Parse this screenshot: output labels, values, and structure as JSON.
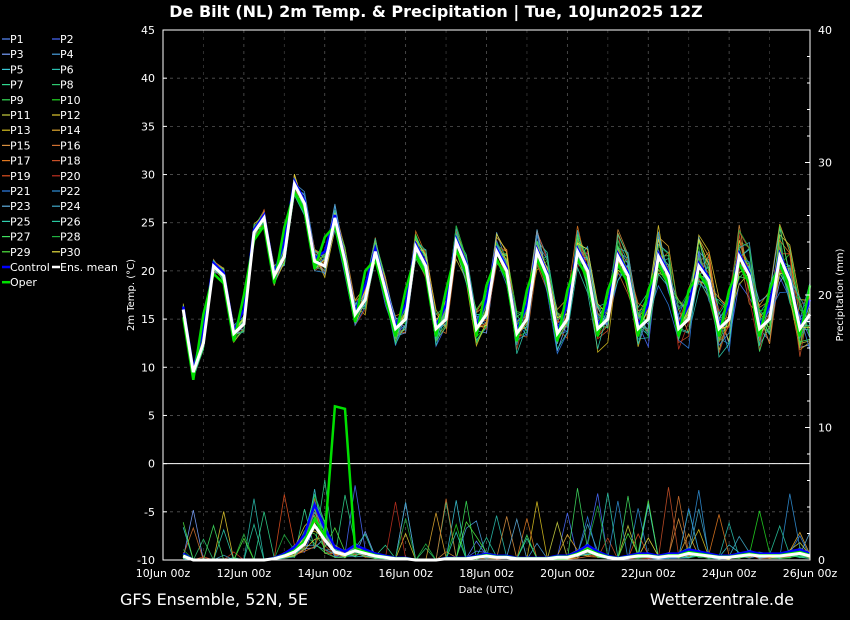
{
  "chart_data": {
    "type": "line",
    "title": "De Bilt  (NL)  2m Temp. & Precipitation | Tue, 10Jun2025 12Z",
    "xlabel": "Date (UTC)",
    "ylabel_left": "2m Temp. (°C)",
    "ylabel_right": "Precipitation (mm)",
    "x_ticks": [
      "10Jun 00z",
      "12Jun 00z",
      "14Jun 00z",
      "16Jun 00z",
      "18Jun 00z",
      "20Jun 00z",
      "22Jun 00z",
      "24Jun 00z",
      "26Jun 00z"
    ],
    "x_range_hours": [
      0,
      384
    ],
    "y_left_ticks": [
      "45",
      "40",
      "35",
      "30",
      "25",
      "20",
      "15",
      "10",
      "5",
      "0",
      "-5",
      "-10"
    ],
    "y_left_range": [
      -10,
      45
    ],
    "y_right_ticks": [
      "40",
      "30",
      "20",
      "10",
      "0"
    ],
    "y_right_range": [
      0,
      40
    ],
    "grid": true,
    "legend_position": "left",
    "x_hours": [
      12,
      18,
      24,
      30,
      36,
      42,
      48,
      54,
      60,
      66,
      72,
      78,
      84,
      90,
      96,
      102,
      108,
      114,
      120,
      126,
      132,
      138,
      144,
      150,
      156,
      162,
      168,
      174,
      180,
      186,
      192,
      198,
      204,
      210,
      216,
      222,
      228,
      234,
      240,
      246,
      252,
      258,
      264,
      270,
      276,
      282,
      288,
      294,
      300,
      306,
      312,
      318,
      324,
      330,
      336,
      342,
      348,
      354,
      360,
      366,
      372,
      378,
      384
    ],
    "ens_mean_temp": [
      16,
      9.5,
      12.5,
      20.5,
      19.5,
      13.5,
      14.5,
      24,
      25.5,
      19.5,
      21.5,
      29,
      27,
      21,
      20.5,
      25.5,
      21,
      15.5,
      17,
      22,
      18,
      14,
      15,
      22.5,
      20.5,
      14,
      15,
      23,
      20.5,
      14,
      15.5,
      22,
      20,
      13.5,
      15,
      22,
      19.5,
      13.5,
      15,
      22,
      20,
      14,
      15,
      21.5,
      19.5,
      14,
      15,
      21.5,
      19.5,
      14,
      15,
      20.5,
      19,
      14,
      15,
      21.5,
      19.5,
      14,
      15,
      21.5,
      19,
      14,
      15.5
    ],
    "ens_mean_precip": [
      0.3,
      0,
      0,
      0,
      0,
      0,
      0,
      0,
      0,
      0.1,
      0.3,
      0.6,
      1.2,
      2.6,
      1.5,
      0.6,
      0.4,
      0.7,
      0.5,
      0.3,
      0.2,
      0.1,
      0.1,
      0,
      0,
      0,
      0.1,
      0.1,
      0.1,
      0.2,
      0.3,
      0.2,
      0.2,
      0.1,
      0.1,
      0.1,
      0.1,
      0.2,
      0.2,
      0.4,
      0.7,
      0.4,
      0.2,
      0.1,
      0.2,
      0.3,
      0.3,
      0.2,
      0.3,
      0.3,
      0.5,
      0.4,
      0.3,
      0.2,
      0.2,
      0.3,
      0.4,
      0.3,
      0.3,
      0.3,
      0.4,
      0.5,
      0.3
    ],
    "series": [
      {
        "name": "P1",
        "color": "#5b8cff"
      },
      {
        "name": "P2",
        "color": "#4a6cff"
      },
      {
        "name": "P3",
        "color": "#7aa2ff"
      },
      {
        "name": "P4",
        "color": "#4aa0e0"
      },
      {
        "name": "P5",
        "color": "#3ac8d8"
      },
      {
        "name": "P6",
        "color": "#2ac0b0"
      },
      {
        "name": "P7",
        "color": "#30d890"
      },
      {
        "name": "P8",
        "color": "#2ec870"
      },
      {
        "name": "P9",
        "color": "#38e058"
      },
      {
        "name": "P10",
        "color": "#22d822"
      },
      {
        "name": "P11",
        "color": "#c8d040"
      },
      {
        "name": "P12",
        "color": "#e0c830"
      },
      {
        "name": "P13",
        "color": "#d8c020"
      },
      {
        "name": "P14",
        "color": "#e0a830"
      },
      {
        "name": "P15",
        "color": "#d89040"
      },
      {
        "name": "P16",
        "color": "#d07030"
      },
      {
        "name": "P17",
        "color": "#e07820"
      },
      {
        "name": "P18",
        "color": "#c85028"
      },
      {
        "name": "P19",
        "color": "#e05020"
      },
      {
        "name": "P20",
        "color": "#c03020"
      },
      {
        "name": "P21",
        "color": "#3080e8"
      },
      {
        "name": "P22",
        "color": "#3090d8"
      },
      {
        "name": "P23",
        "color": "#60b0e0"
      },
      {
        "name": "P24",
        "color": "#40a8c8"
      },
      {
        "name": "P25",
        "color": "#30d0b0"
      },
      {
        "name": "P26",
        "color": "#28c8a0"
      },
      {
        "name": "P27",
        "color": "#40e060"
      },
      {
        "name": "P28",
        "color": "#20b040"
      },
      {
        "name": "P29",
        "color": "#50e840"
      },
      {
        "name": "P30",
        "color": "#e8e040"
      },
      {
        "name": "Control",
        "color": "#0000ff"
      },
      {
        "name": "Ens. mean",
        "color": "#ffffff"
      },
      {
        "name": "Oper",
        "color": "#00e000"
      }
    ]
  },
  "footer": {
    "left": "GFS Ensemble, 52N, 5E",
    "right": "Wetterzentrale.de"
  }
}
